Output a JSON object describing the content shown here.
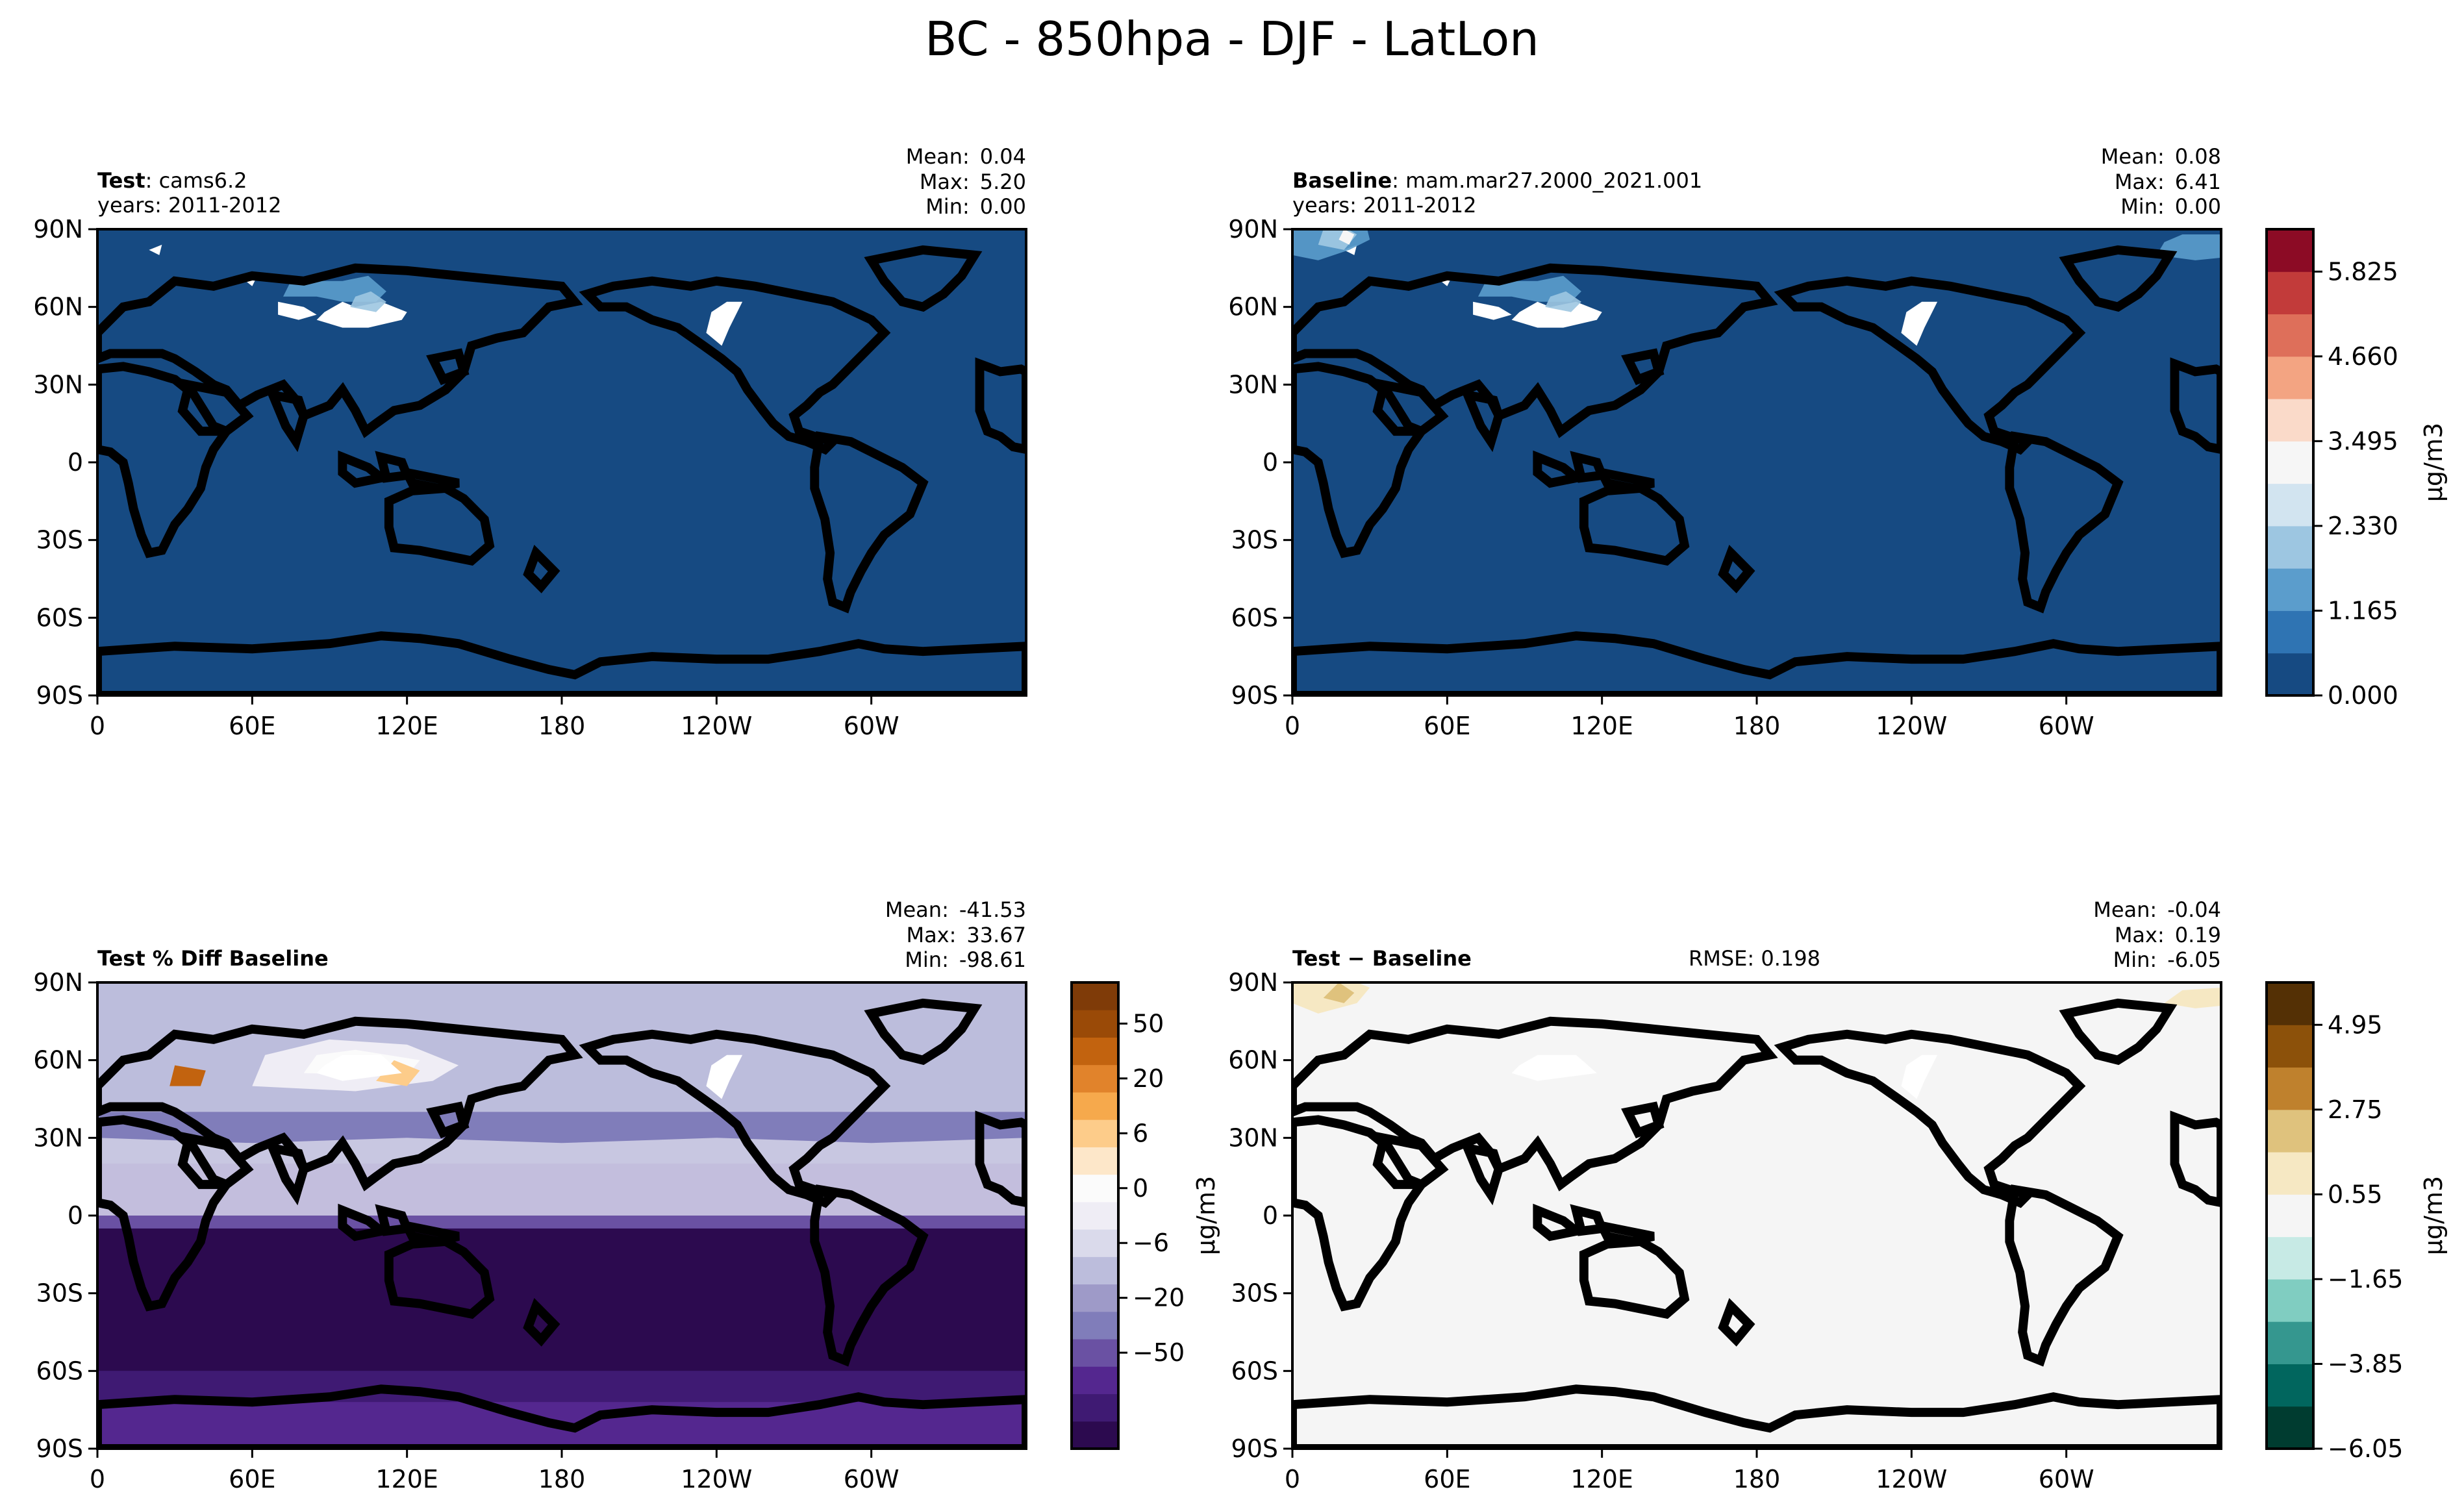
{
  "suptitle": "BC - 850hpa - DJF - LatLon",
  "panels": [
    {
      "id": "test",
      "title_bold": "Test",
      "title_rest": ": cams6.2",
      "subtitle": "years: 2011-2012",
      "stats": {
        "mean": "0.04",
        "max": "5.20",
        "min": "0.00"
      },
      "rmse": ""
    },
    {
      "id": "baseline",
      "title_bold": "Baseline",
      "title_rest": ": mam.mar27.2000_2021.001",
      "subtitle": "years: 2011-2012",
      "stats": {
        "mean": "0.08",
        "max": "6.41",
        "min": "0.00"
      },
      "rmse": ""
    },
    {
      "id": "pctdiff",
      "title_bold": "Test % Diff Baseline",
      "title_rest": "",
      "subtitle": "",
      "stats": {
        "mean": "-41.53",
        "max": "33.67",
        "min": "-98.61"
      },
      "rmse": ""
    },
    {
      "id": "diff",
      "title_bold": "Test − Baseline",
      "title_rest": "",
      "subtitle": "",
      "stats": {
        "mean": "-0.04",
        "max": "0.19",
        "min": "-6.05"
      },
      "rmse": "RMSE: 0.198"
    }
  ],
  "stat_labels": {
    "mean": "Mean:",
    "max": "Max:",
    "min": "Min:"
  },
  "axes": {
    "xticks": [
      "0",
      "60E",
      "120E",
      "180",
      "120W",
      "60W"
    ],
    "yticks": [
      "90N",
      "60N",
      "30N",
      "0",
      "30S",
      "60S",
      "90S"
    ]
  },
  "colorbars": {
    "main": {
      "unit": "μg/m3",
      "ticks": [
        "0.000",
        "1.165",
        "2.330",
        "3.495",
        "4.660",
        "5.825"
      ],
      "colors": [
        "#164a82",
        "#2f74b3",
        "#5b9dcc",
        "#9dc6e1",
        "#d2e4f0",
        "#f6f6f6",
        "#fadac9",
        "#f3a482",
        "#de6f5a",
        "#c23b3a",
        "#8c0b25"
      ]
    },
    "pct": {
      "unit": "μg/m3",
      "ticks": [
        "50",
        "20",
        "6",
        "0",
        "−6",
        "−20",
        "−50"
      ],
      "colors": [
        "#2c0a4f",
        "#3f1a73",
        "#54278f",
        "#6a51a3",
        "#807dba",
        "#9e9ac8",
        "#bcbddc",
        "#dadaeb",
        "#efedf5",
        "#fbfbfb",
        "#fde7c9",
        "#fdcc8a",
        "#f6a94c",
        "#e1832b",
        "#c2630f",
        "#9a4a07",
        "#7f3b08"
      ]
    },
    "diff": {
      "unit": "μg/m3",
      "ticks": [
        "4.95",
        "2.75",
        "0.55",
        "−1.65",
        "−3.85",
        "−6.05"
      ],
      "colors": [
        "#003c30",
        "#01665e",
        "#35978f",
        "#80cdc1",
        "#c7eae5",
        "#f5f5f5",
        "#f6e8c3",
        "#dfc27d",
        "#bf812d",
        "#8c510a",
        "#543005"
      ]
    }
  },
  "chart_data": [
    {
      "type": "heatmap",
      "title": "Test: cams6.2",
      "projection": "LatLon",
      "xlim": [
        0,
        360
      ],
      "ylim": [
        -90,
        90
      ],
      "summary": {
        "mean": 0.04,
        "max": 5.2,
        "min": 0.0
      },
      "colorbar": "main"
    },
    {
      "type": "heatmap",
      "title": "Baseline: mam.mar27.2000_2021.001",
      "projection": "LatLon",
      "xlim": [
        0,
        360
      ],
      "ylim": [
        -90,
        90
      ],
      "summary": {
        "mean": 0.08,
        "max": 6.41,
        "min": 0.0
      },
      "colorbar": "main"
    },
    {
      "type": "heatmap",
      "title": "Test % Diff Baseline",
      "projection": "LatLon",
      "xlim": [
        0,
        360
      ],
      "ylim": [
        -90,
        90
      ],
      "summary": {
        "mean": -41.53,
        "max": 33.67,
        "min": -98.61
      },
      "colorbar": "pct"
    },
    {
      "type": "heatmap",
      "title": "Test − Baseline",
      "projection": "LatLon",
      "xlim": [
        0,
        360
      ],
      "ylim": [
        -90,
        90
      ],
      "summary": {
        "mean": -0.04,
        "max": 0.19,
        "min": -6.05
      },
      "rmse": 0.198,
      "colorbar": "diff"
    }
  ]
}
